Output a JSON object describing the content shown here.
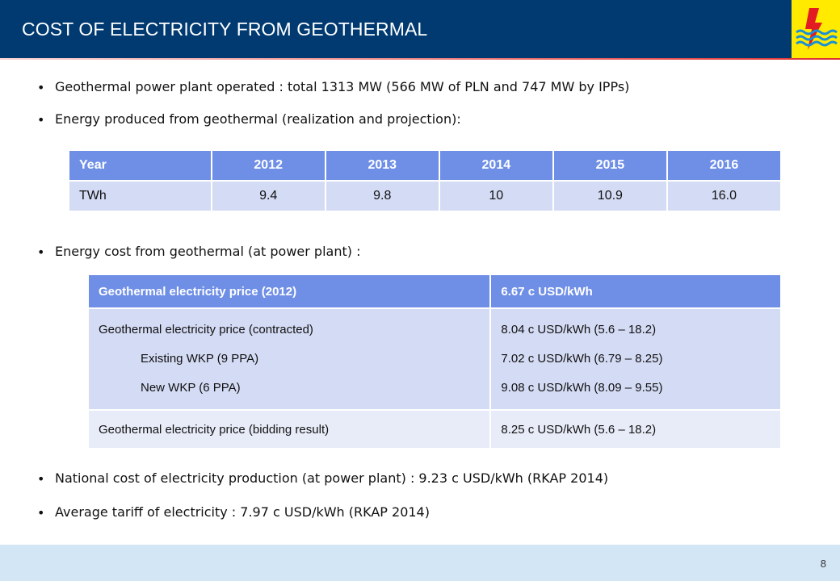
{
  "header": {
    "title": "COST OF ELECTRICITY FROM GEOTHERMAL"
  },
  "colors": {
    "header_bg": "#003a70",
    "logo_bg": "#ffea00",
    "table_header": "#6f8fe7",
    "table_row": "#d4dbf4",
    "footer": "#d2e6f6"
  },
  "bullets": {
    "b1": "Geothermal  power  plant operated : total 1313 MW (566 MW  of PLN and 747 MW by IPPs)",
    "b2": "Energy produced from geothermal (realization and projection):",
    "b3": "Energy cost  from geothermal (at power plant) :",
    "b4": "National cost of electricity production (at power plant) : 9.23 c USD/kWh (RKAP 2014)",
    "b5": "Average tariff of electricity : 7.97 c USD/kWh (RKAP 2014)"
  },
  "table1": {
    "header": [
      "Year",
      "2012",
      "2013",
      "2014",
      "2015",
      "2016"
    ],
    "row": [
      "TWh",
      "9.4",
      "9.8",
      "10",
      "10.9",
      "16.0"
    ]
  },
  "table2": {
    "header": [
      "Geothermal electricity price (2012)",
      "6.67 c USD/kWh"
    ],
    "row1_left": [
      "Geothermal  electricity price (contracted)",
      "Existing WKP (9 PPA)",
      "New WKP (6 PPA)"
    ],
    "row1_right": [
      "8.04 c USD/kWh (5.6 – 18.2)",
      "7.02 c USD/kWh (6.79 – 8.25)",
      "9.08 c USD/kWh (8.09 – 9.55)"
    ],
    "row2": [
      "Geothermal electricity price (bidding result)",
      "8.25 c USD/kWh (5.6 – 18.2)"
    ]
  },
  "footer": {
    "page_number": "8"
  }
}
